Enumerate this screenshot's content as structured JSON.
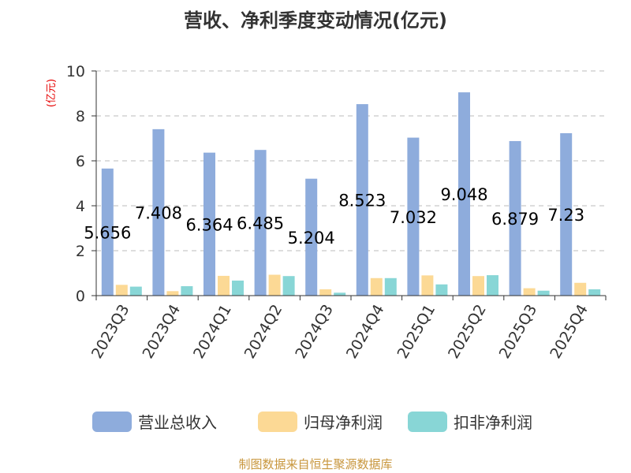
{
  "chart_data": {
    "type": "bar",
    "title": "营收、净利季度变动情况(亿元)",
    "unit_label": "(亿元)",
    "categories": [
      "2023Q3",
      "2023Q4",
      "2024Q1",
      "2024Q2",
      "2024Q3",
      "2024Q4",
      "2025Q1",
      "2025Q2",
      "2025Q3",
      "2025Q4"
    ],
    "series": [
      {
        "name": "营业总收入",
        "color": "#8eacdc",
        "values": [
          5.656,
          7.408,
          6.364,
          6.485,
          5.204,
          8.523,
          7.032,
          9.048,
          6.879,
          7.23
        ],
        "labels": [
          "5.656",
          "7.408",
          "6.364",
          "6.485",
          "5.204",
          "8.523",
          "7.032",
          "9.048",
          "6.879",
          "7.23"
        ]
      },
      {
        "name": "归母净利润",
        "color": "#fcd995",
        "values": [
          0.48,
          0.2,
          0.88,
          0.93,
          0.28,
          0.78,
          0.9,
          0.87,
          0.33,
          0.57
        ]
      },
      {
        "name": "扣非净利润",
        "color": "#88d6d6",
        "values": [
          0.4,
          0.42,
          0.67,
          0.87,
          0.13,
          0.78,
          0.5,
          0.91,
          0.22,
          0.28
        ]
      }
    ],
    "ylim": [
      0,
      10
    ],
    "yticks": [
      "0",
      "2",
      "4",
      "6",
      "8",
      "10"
    ],
    "grid": true,
    "legend_position": "bottom"
  },
  "footer": {
    "source": "制图数据来自恒生聚源数据库"
  }
}
